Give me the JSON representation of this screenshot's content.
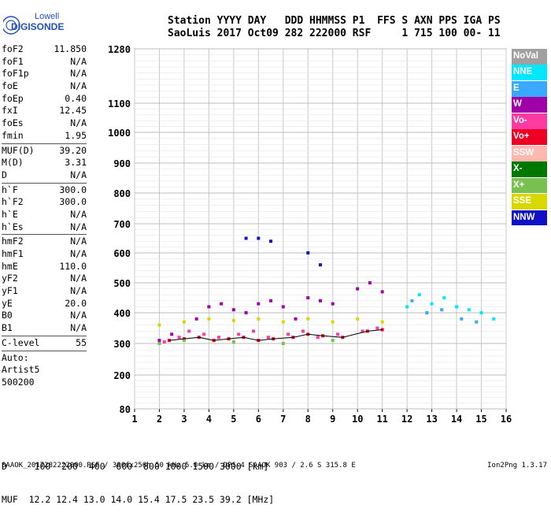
{
  "logo": {
    "line1": "Lowell",
    "line2": "DIGISONDE"
  },
  "header": {
    "row1": "Station YYYY DAY   DDD HHMMSS P1  FFS S AXN PPS IGA PS",
    "row2": "SaoLuis 2017 Oct09 282 222000 RSF     1 715 100 00- 11"
  },
  "params": [
    {
      "label": "foF2",
      "value": "11.850"
    },
    {
      "label": "foF1",
      "value": "N/A"
    },
    {
      "label": "foF1p",
      "value": "N/A"
    },
    {
      "label": "foE",
      "value": "N/A"
    },
    {
      "label": "foEp",
      "value": "0.40"
    },
    {
      "label": "fxI",
      "value": "12.45"
    },
    {
      "label": "foEs",
      "value": "N/A"
    },
    {
      "label": "fmin",
      "value": "1.95"
    },
    {
      "sep": true
    },
    {
      "label": "MUF(D)",
      "value": "39.20"
    },
    {
      "label": "M(D)",
      "value": "3.31"
    },
    {
      "label": "D",
      "value": "N/A"
    },
    {
      "sep": true
    },
    {
      "label": "h`F",
      "value": "300.0"
    },
    {
      "label": "h`F2",
      "value": "300.0"
    },
    {
      "label": "h`E",
      "value": "N/A"
    },
    {
      "label": "h`Es",
      "value": "N/A"
    },
    {
      "sep": true
    },
    {
      "label": "hmF2",
      "value": "N/A"
    },
    {
      "label": "hmF1",
      "value": "N/A"
    },
    {
      "label": "hmE",
      "value": "110.0"
    },
    {
      "label": "yF2",
      "value": "N/A"
    },
    {
      "label": "yF1",
      "value": "N/A"
    },
    {
      "label": "yE",
      "value": "20.0"
    },
    {
      "label": "B0",
      "value": "N/A"
    },
    {
      "label": "B1",
      "value": "N/A"
    },
    {
      "sep": true
    },
    {
      "label": "C-level",
      "value": "55"
    },
    {
      "sep": true
    },
    {
      "text": "Auto:"
    },
    {
      "text": "Artist5"
    },
    {
      "text": "500200"
    }
  ],
  "legend": [
    {
      "label": "NoVal",
      "color": "#a0a0a0"
    },
    {
      "label": "NNE",
      "color": "#00e8ff"
    },
    {
      "label": "E",
      "color": "#3aa8ff"
    },
    {
      "label": "W",
      "color": "#a000a8"
    },
    {
      "label": "Vo-",
      "color": "#ff3aa0"
    },
    {
      "label": "Vo+",
      "color": "#ee0022"
    },
    {
      "label": "SSW",
      "color": "#ffb8b0"
    },
    {
      "label": "X-",
      "color": "#007800"
    },
    {
      "label": "X+",
      "color": "#78c050"
    },
    {
      "label": "SSE",
      "color": "#d8d800"
    },
    {
      "label": "NNW",
      "color": "#1010c8"
    }
  ],
  "chart_data": {
    "type": "scatter",
    "xlabel": "",
    "ylabel": "",
    "xlim": [
      1,
      16
    ],
    "ylim": [
      80,
      1280
    ],
    "x_ticks": [
      1,
      2,
      3,
      4,
      5,
      6,
      7,
      8,
      9,
      10,
      11,
      12,
      13,
      14,
      15,
      16
    ],
    "y_ticks": [
      80,
      200,
      300,
      400,
      500,
      600,
      700,
      800,
      900,
      1000,
      1100,
      1280
    ],
    "grid": true,
    "series": [
      {
        "name": "W",
        "color": "#a000a8",
        "x": [
          2.0,
          2.5,
          3.5,
          4.0,
          4.5,
          5.0,
          5.5,
          6.0,
          6.5,
          7.0,
          7.5,
          8.0,
          8.5,
          9.0,
          10.0,
          10.5,
          11.0
        ],
        "y": [
          310,
          330,
          380,
          420,
          430,
          410,
          400,
          430,
          440,
          420,
          380,
          450,
          440,
          430,
          480,
          500,
          470
        ]
      },
      {
        "name": "Vo-",
        "color": "#ff3aa0",
        "x": [
          2.2,
          2.8,
          3.2,
          3.8,
          4.4,
          5.2,
          5.8,
          6.4,
          7.2,
          7.8,
          8.4,
          9.2,
          10.2,
          10.8
        ],
        "y": [
          305,
          320,
          340,
          330,
          320,
          330,
          340,
          320,
          330,
          340,
          320,
          330,
          340,
          350
        ]
      },
      {
        "name": "Vo+",
        "color": "#ee0022",
        "x": [
          2.4,
          3.0,
          3.6,
          4.2,
          4.8,
          5.4,
          6.0,
          6.6,
          7.4,
          8.0,
          8.6,
          9.4,
          10.4,
          11.0
        ],
        "y": [
          310,
          315,
          320,
          310,
          315,
          320,
          310,
          315,
          320,
          330,
          325,
          320,
          340,
          345
        ]
      },
      {
        "name": "NNE",
        "color": "#00e8ff",
        "x": [
          12.0,
          12.5,
          13.0,
          13.5,
          14.0,
          14.5,
          15.0,
          15.5
        ],
        "y": [
          420,
          460,
          430,
          450,
          420,
          410,
          400,
          380
        ]
      },
      {
        "name": "E",
        "color": "#3aa8ff",
        "x": [
          12.2,
          12.8,
          13.4,
          14.2,
          14.8
        ],
        "y": [
          440,
          400,
          410,
          380,
          370
        ]
      },
      {
        "name": "SSE",
        "color": "#d8d800",
        "x": [
          2.0,
          3.0,
          4.0,
          5.0,
          6.0,
          7.0,
          8.0,
          9.0,
          10.0,
          11.0
        ],
        "y": [
          360,
          370,
          380,
          375,
          380,
          370,
          380,
          370,
          380,
          370
        ]
      },
      {
        "name": "NNW",
        "color": "#1010c8",
        "x": [
          5.5,
          6.0,
          6.5,
          8.0,
          8.5
        ],
        "y": [
          650,
          650,
          640,
          600,
          560
        ]
      },
      {
        "name": "X+",
        "color": "#78c050",
        "x": [
          2.0,
          3.0,
          5.0,
          7.0,
          9.0
        ],
        "y": [
          300,
          310,
          305,
          300,
          310
        ]
      }
    ]
  },
  "bottom": {
    "row1": "D     100  200  400  600  800 1000 1500 3000 [km]",
    "row2": "MUF  12.2 12.4 13.0 14.0 15.4 17.5 23.5 39.2 [MHz]"
  },
  "footer": {
    "left": "SAAOK_2017282222000.RSF / 300fx256h 50 kHz 5.0 km / DPS-4 SAAOK 903 / 2.6 S 315.8 E",
    "right": "Ion2Png 1.3.17"
  }
}
